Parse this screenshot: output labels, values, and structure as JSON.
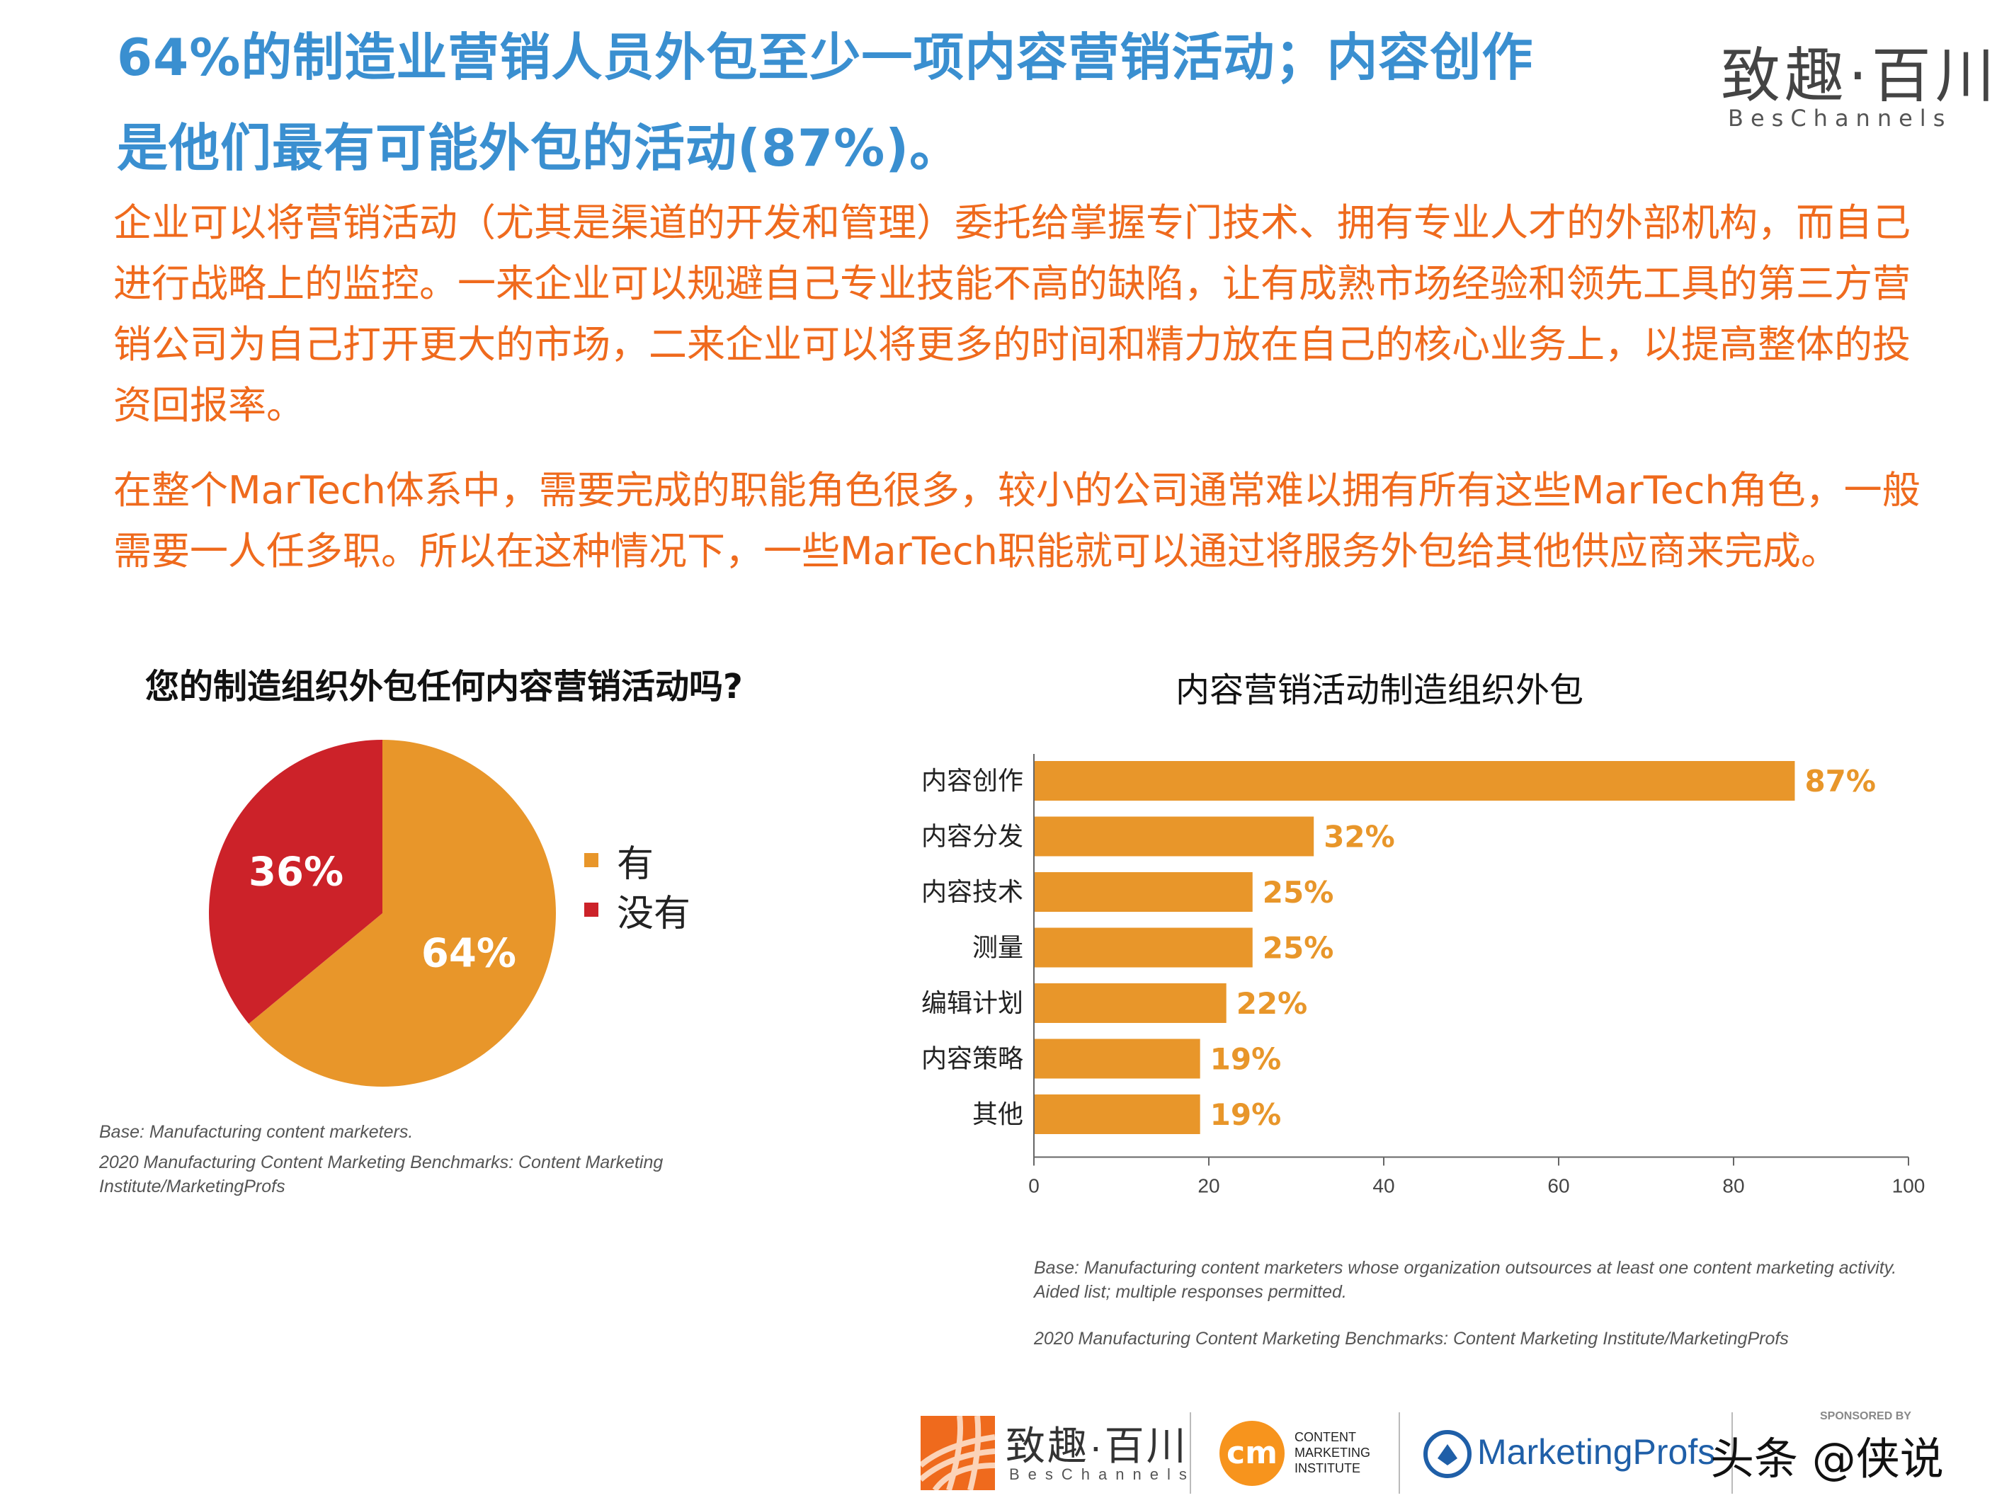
{
  "header": {
    "title_line1": "64%的制造业营销人员外包至少一项内容营销活动；内容创作",
    "title_line2": "是他们最有可能外包的活动(87%)。",
    "logo_cn": "致趣·百川",
    "logo_en": "BesChannels"
  },
  "paragraphs": [
    "企业可以将营销活动（尤其是渠道的开发和管理）委托给掌握专门技术、拥有专业人才的外部机构，而自己进行战略上的监控。一来企业可以规避自己专业技能不高的缺陷，让有成熟市场经验和领先工具的第三方营销公司为自己打开更大的市场，二来企业可以将更多的时间和精力放在自己的核心业务上，以提高整体的投资回报率。",
    "在整个MarTech体系中，需要完成的职能角色很多，较小的公司通常难以拥有所有这些MarTech角色，一般需要一人任多职。所以在这种情况下，一些MarTech职能就可以通过将服务外包给其他供应商来完成。"
  ],
  "pie_notes": [
    "Base: Manufacturing content marketers.",
    "2020 Manufacturing Content Marketing Benchmarks: Content Marketing",
    "Institute/MarketingProfs"
  ],
  "bar_notes": [
    "Base: Manufacturing content marketers whose organization outsources at least one content marketing activity.",
    "Aided list; multiple responses permitted.",
    "2020 Manufacturing Content Marketing Benchmarks: Content Marketing Institute/MarketingProfs"
  ],
  "footer": {
    "brand1_cn": "致趣·百川",
    "brand1_en": "BesChannels",
    "cmi_lines": [
      "CONTENT",
      "MARKETING",
      "INSTITUTE"
    ],
    "brand3": "MarketingProfs",
    "sponsor": "SPONSORED BY",
    "watermark": "头条 @侠说"
  },
  "colors": {
    "orange": "#e8962a",
    "red": "#cc2229",
    "title_blue": "#3a8fd0",
    "text_orange": "#ef6a1d"
  },
  "chart_data": [
    {
      "type": "pie",
      "title": "您的制造组织外包任何内容营销活动吗?",
      "slices": [
        {
          "label": "有",
          "value": 64,
          "display": "64%",
          "color": "#e8962a"
        },
        {
          "label": "没有",
          "value": 36,
          "display": "36%",
          "color": "#cc2229"
        }
      ],
      "legend_placement": "right"
    },
    {
      "type": "bar",
      "orientation": "horizontal",
      "title": "内容营销活动制造组织外包",
      "categories": [
        "内容创作",
        "内容分发",
        "内容技术",
        "测量",
        "编辑计划",
        "内容策略",
        "其他"
      ],
      "values": [
        87,
        32,
        25,
        25,
        22,
        19,
        19
      ],
      "value_labels": [
        "87%",
        "32%",
        "25%",
        "25%",
        "22%",
        "19%",
        "19%"
      ],
      "xlim": [
        0,
        100
      ],
      "xticks": [
        0,
        20,
        40,
        60,
        80,
        100
      ],
      "xtick_labels": [
        "0",
        "20",
        "40",
        "60",
        "80",
        "100"
      ],
      "grid": false,
      "color": "#e8962a"
    }
  ]
}
